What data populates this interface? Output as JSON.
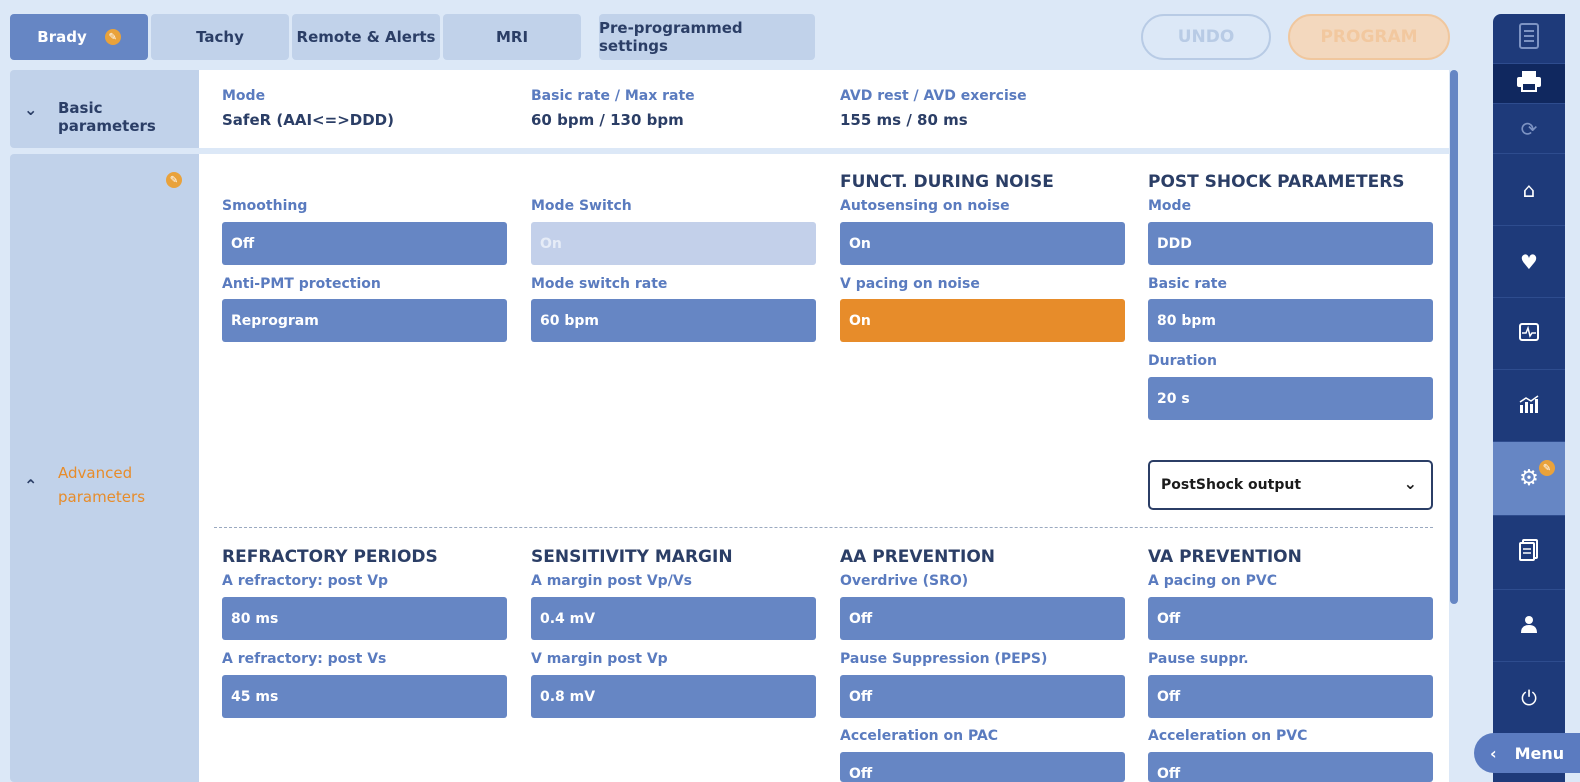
{
  "tabs": [
    {
      "label": "Brady",
      "active": true
    },
    {
      "label": "Tachy"
    },
    {
      "label": "Remote & Alerts"
    },
    {
      "label": "MRI"
    },
    {
      "label": "Pre-programmed settings"
    }
  ],
  "actions": {
    "undo": "UNDO",
    "program": "PROGRAM"
  },
  "basic": {
    "section_label": "Basic parameters",
    "mode_label": "Mode",
    "mode_value": "SafeR (AAI<=>DDD)",
    "rate_label": "Basic rate / Max rate",
    "rate_value": "60 bpm / 130 bpm",
    "avd_label": "AVD rest / AVD exercise",
    "avd_value": "155 ms / 80 ms"
  },
  "advanced": {
    "section_label_line1": "Advanced",
    "section_label_line2": "parameters",
    "smoothing_label": "Smoothing",
    "smoothing_value": "Off",
    "antipmt_label": "Anti-PMT protection",
    "antipmt_value": "Reprogram",
    "modeswitch_label": "Mode Switch",
    "modeswitch_value": "On",
    "modeswitch_rate_label": "Mode switch rate",
    "modeswitch_rate_value": "60  bpm",
    "noise_head": "FUNCT. DURING NOISE",
    "autosense_label": "Autosensing on noise",
    "autosense_value": "On",
    "vpacing_label": "V pacing on noise",
    "vpacing_value": "On",
    "postshock_head": "POST SHOCK PARAMETERS",
    "ps_mode_label": "Mode",
    "ps_mode_value": "DDD",
    "ps_rate_label": "Basic rate",
    "ps_rate_value": "80  bpm",
    "ps_duration_label": "Duration",
    "ps_duration_value": "20 s",
    "ps_output_select": "PostShock output",
    "refractory_head": "REFRACTORY PERIODS",
    "aref_vp_label": "A refractory: post Vp",
    "aref_vp_value": "80  ms",
    "aref_vs_label": "A refractory: post Vs",
    "aref_vs_value": "45  ms",
    "sens_head": "SENSITIVITY MARGIN",
    "amargin_label": "A margin post Vp/Vs",
    "amargin_value": "0.4  mV",
    "vmargin_label": "V margin post Vp",
    "vmargin_value": "0.8  mV",
    "aa_head": "AA PREVENTION",
    "overdrive_label": "Overdrive (SRO)",
    "overdrive_value": "Off",
    "peps_label": "Pause Suppression (PEPS)",
    "peps_value": "Off",
    "accel_pac_label": "Acceleration on PAC",
    "accel_pac_value": "Off",
    "va_head": "VA PREVENTION",
    "apacing_pvc_label": "A pacing on PVC",
    "apacing_pvc_value": "Off",
    "pause_suppr_label": "Pause suppr.",
    "pause_suppr_value": "Off",
    "accel_pvc_label": "Acceleration on PVC",
    "accel_pvc_value": "Off"
  },
  "sidenav": {
    "menu_label": "Menu",
    "icons": [
      "document-icon",
      "print-icon",
      "sync-icon",
      "home-icon",
      "heart-icon",
      "ecg-icon",
      "chart-icon",
      "settings-icon",
      "report-icon",
      "user-icon",
      "power-icon"
    ]
  },
  "colors": {
    "accent": "#6686c4",
    "nav": "#1e3a7a",
    "warning": "#e78c2a",
    "label": "#5a7bbf",
    "text": "#2b3e66"
  }
}
